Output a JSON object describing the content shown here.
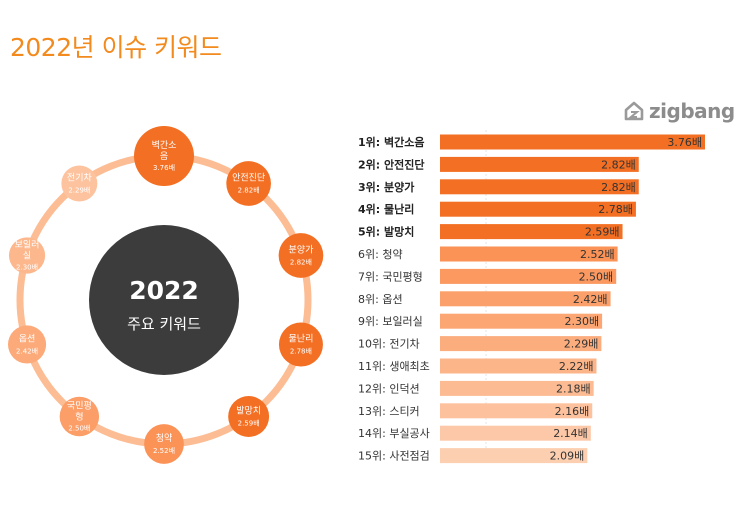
{
  "title": "2022년 이슈 키워드",
  "logo": {
    "text": "zigbang",
    "icon": "zigbang-house-icon"
  },
  "center": {
    "year": "2022",
    "subtitle": "주요 키워드"
  },
  "colors": {
    "title": "#f28a1e",
    "ring": "#fcbd94",
    "center": "#3c3c3c",
    "top5": "#f36f23",
    "grad_start": "#fb9256",
    "grad_end": "#fdcfb1"
  },
  "chart_data": {
    "type": "bar",
    "orientation": "horizontal",
    "value_suffix": "배",
    "items": [
      {
        "label": "1위: 벽간소음",
        "node": "벽간소\n음",
        "value": 3.76,
        "value_text": "3.76배"
      },
      {
        "label": "2위: 안전진단",
        "node": "안전진단",
        "value": 2.82,
        "value_text": "2.82배"
      },
      {
        "label": "3위: 분양가",
        "node": "분양가",
        "value": 2.82,
        "value_text": "2.82배"
      },
      {
        "label": "4위: 물난리",
        "node": "물난리",
        "value": 2.78,
        "value_text": "2.78배"
      },
      {
        "label": "5위: 발망치",
        "node": "발망치",
        "value": 2.59,
        "value_text": "2.59배"
      },
      {
        "label": "6위: 청약",
        "node": "청약",
        "value": 2.52,
        "value_text": "2.52배"
      },
      {
        "label": "7위: 국민평형",
        "node": "국민평\n형",
        "value": 2.5,
        "value_text": "2.50배"
      },
      {
        "label": "8위: 옵션",
        "node": "옵션",
        "value": 2.42,
        "value_text": "2.42배"
      },
      {
        "label": "9위: 보일러실",
        "node": "보일러\n실",
        "value": 2.3,
        "value_text": "2.30배"
      },
      {
        "label": "10위: 전기차",
        "node": "전기차",
        "value": 2.29,
        "value_text": "2.29배"
      },
      {
        "label": "11위: 생애최초",
        "value": 2.22,
        "value_text": "2.22배"
      },
      {
        "label": "12위: 인덕션",
        "value": 2.18,
        "value_text": "2.18배"
      },
      {
        "label": "13위: 스티커",
        "value": 2.16,
        "value_text": "2.16배"
      },
      {
        "label": "14위: 부실공사",
        "value": 2.14,
        "value_text": "2.14배"
      },
      {
        "label": "15위: 사전점검",
        "value": 2.09,
        "value_text": "2.09배"
      }
    ],
    "bold_top": 5,
    "xlim": [
      0,
      3.76
    ]
  }
}
